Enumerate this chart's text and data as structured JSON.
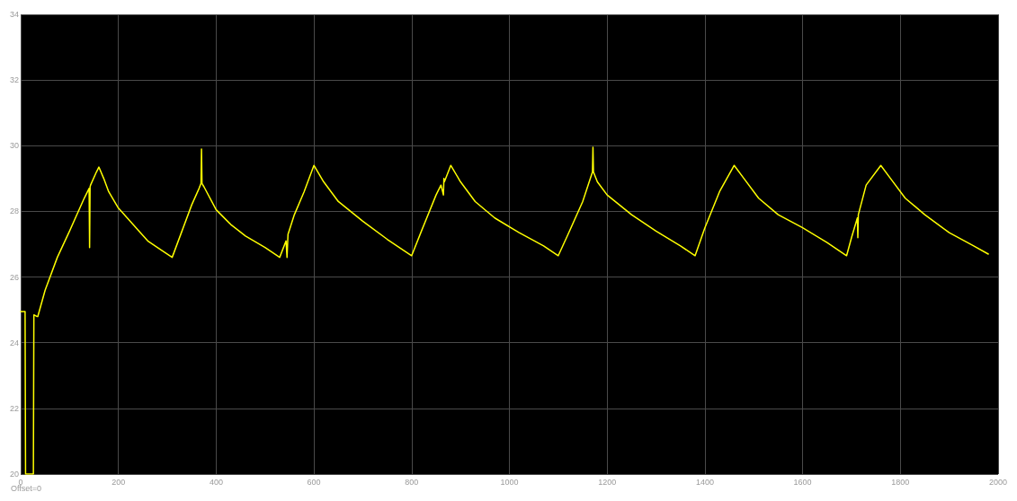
{
  "chart_data": {
    "type": "line",
    "x": [
      0,
      9,
      10,
      26,
      27,
      33,
      35,
      50,
      75,
      100,
      130,
      140,
      141,
      142,
      143,
      155,
      160,
      170,
      180,
      200,
      230,
      260,
      290,
      310,
      330,
      350,
      365,
      369,
      370,
      371,
      375,
      400,
      430,
      460,
      500,
      530,
      543,
      545,
      547,
      560,
      580,
      600,
      620,
      650,
      700,
      750,
      800,
      820,
      850,
      860,
      865,
      866,
      867,
      880,
      900,
      930,
      970,
      1020,
      1070,
      1100,
      1120,
      1150,
      1170,
      1171,
      1172,
      1180,
      1200,
      1250,
      1300,
      1350,
      1380,
      1400,
      1430,
      1460,
      1480,
      1510,
      1550,
      1600,
      1650,
      1690,
      1700,
      1712,
      1713,
      1714,
      1730,
      1760,
      1780,
      1810,
      1850,
      1900,
      1950,
      1980
    ],
    "values": [
      24.95,
      24.95,
      20,
      20,
      24.85,
      24.8,
      24.8,
      25.6,
      26.6,
      27.4,
      28.4,
      28.7,
      26.9,
      28.75,
      28.8,
      29.2,
      29.35,
      29.0,
      28.6,
      28.1,
      27.6,
      27.1,
      26.8,
      26.6,
      27.4,
      28.2,
      28.7,
      28.85,
      29.9,
      28.85,
      28.75,
      28.05,
      27.6,
      27.25,
      26.9,
      26.6,
      27.1,
      26.6,
      27.3,
      27.9,
      28.6,
      29.4,
      28.9,
      28.3,
      27.7,
      27.15,
      26.65,
      27.4,
      28.5,
      28.8,
      28.5,
      29.0,
      28.9,
      29.4,
      28.9,
      28.3,
      27.8,
      27.35,
      26.95,
      26.65,
      27.3,
      28.3,
      29.2,
      29.95,
      29.2,
      28.9,
      28.5,
      27.9,
      27.4,
      26.95,
      26.65,
      27.5,
      28.6,
      29.4,
      29.0,
      28.4,
      27.9,
      27.5,
      27.05,
      26.65,
      27.2,
      27.8,
      27.2,
      27.9,
      28.8,
      29.4,
      29.0,
      28.4,
      27.9,
      27.35,
      26.95,
      26.7
    ],
    "color": "#ffff00",
    "xlim": [
      0,
      2000
    ],
    "ylim": [
      20,
      34
    ],
    "xticks": [
      0,
      200,
      400,
      600,
      800,
      1000,
      1200,
      1400,
      1600,
      1800,
      2000
    ],
    "yticks": [
      20,
      22,
      24,
      26,
      28,
      30,
      32,
      34
    ],
    "grid": true,
    "marker": "none",
    "line_style": "solid",
    "annotations": [
      "Offset=0"
    ]
  }
}
